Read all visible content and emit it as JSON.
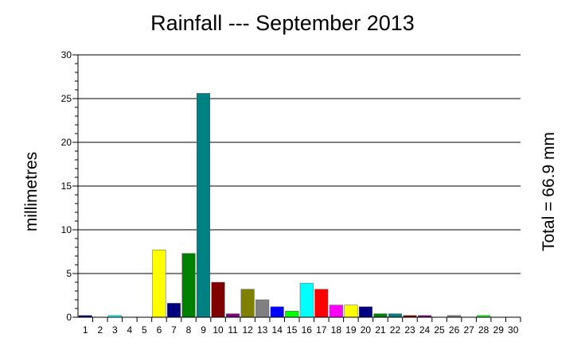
{
  "chart_data": {
    "type": "bar",
    "title": "Rainfall --- September 2013",
    "ylabel": "millimetres",
    "xlabel": "",
    "annotation": "Total = 66.9 mm",
    "ylim": [
      0,
      30
    ],
    "y_ticks": [
      "0",
      "5",
      "10",
      "15",
      "20",
      "25",
      "30"
    ],
    "grid": true,
    "categories": [
      "1",
      "2",
      "3",
      "4",
      "5",
      "6",
      "7",
      "8",
      "9",
      "10",
      "11",
      "12",
      "13",
      "14",
      "15",
      "16",
      "17",
      "18",
      "19",
      "20",
      "21",
      "22",
      "23",
      "24",
      "25",
      "26",
      "27",
      "28",
      "29",
      "30"
    ],
    "values": [
      0.2,
      0,
      0.2,
      0,
      0,
      7.7,
      1.6,
      7.3,
      25.6,
      4.0,
      0.4,
      3.2,
      2.0,
      1.2,
      0.7,
      3.9,
      3.2,
      1.4,
      1.4,
      1.2,
      0.4,
      0.4,
      0.2,
      0.2,
      0,
      0.2,
      0,
      0.2,
      0,
      0
    ],
    "colors": [
      "#000080",
      "#800080",
      "#00ffff",
      "#800000",
      "#008080",
      "#ffff00",
      "#000080",
      "#008000",
      "#008080",
      "#800000",
      "#800080",
      "#808000",
      "#808080",
      "#0000ff",
      "#00ff00",
      "#00ffff",
      "#ff0000",
      "#ff00ff",
      "#ffff00",
      "#000080",
      "#008000",
      "#008080",
      "#800000",
      "#800080",
      "#808000",
      "#808080",
      "#c0c0c0",
      "#00ff00",
      "#ff0000",
      "#ff00ff"
    ]
  }
}
